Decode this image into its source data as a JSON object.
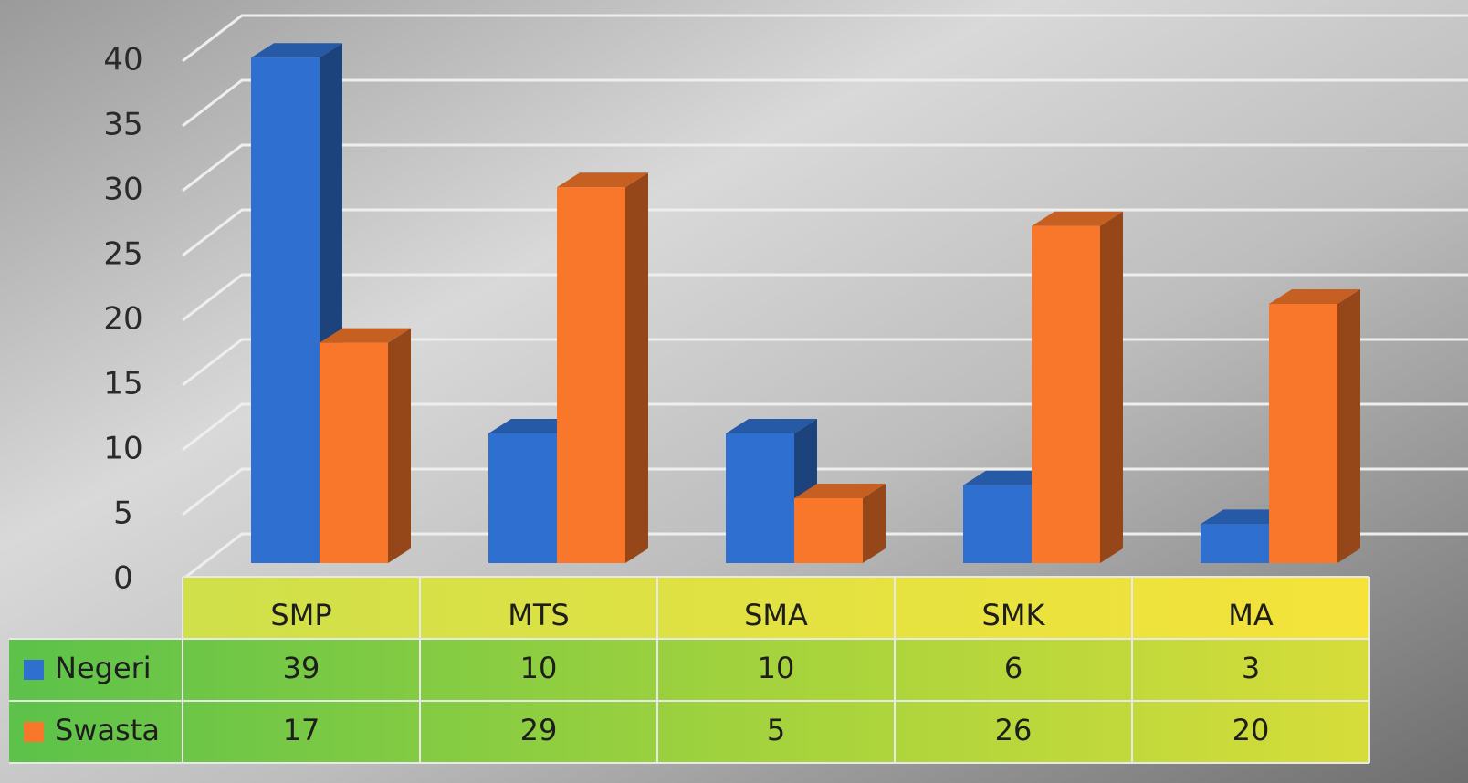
{
  "chart_data": {
    "type": "bar3d",
    "categories": [
      "SMP",
      "MTS",
      "SMA",
      "SMK",
      "MA"
    ],
    "series": [
      {
        "name": "Negeri",
        "color": "#2f6fcf",
        "values": [
          39,
          10,
          10,
          6,
          3
        ]
      },
      {
        "name": "Swasta",
        "color": "#f8772b",
        "values": [
          17,
          29,
          5,
          26,
          20
        ]
      }
    ],
    "ylim": [
      0,
      40
    ],
    "yticks": [
      0,
      5,
      10,
      15,
      20,
      25,
      30,
      35,
      40
    ],
    "grid": true
  }
}
